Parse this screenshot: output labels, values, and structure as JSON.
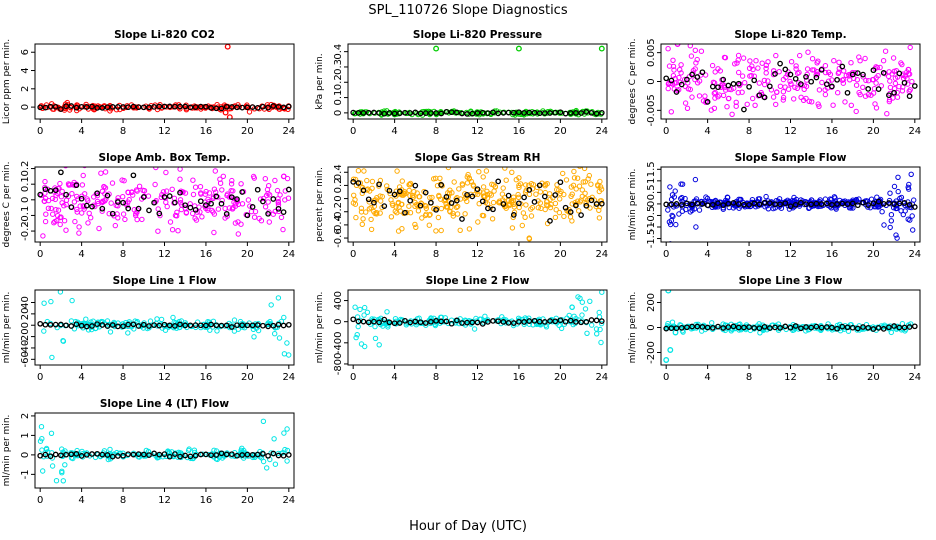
{
  "figure": {
    "title": "SPL_110726  Slope Diagnostics",
    "xlabel": "Hour of Day (UTC)"
  },
  "chart_data": [
    {
      "type": "scatter",
      "title": "Slope Li-820 CO2",
      "ylabel": "Licor ppm per min.",
      "color": "#ff0000",
      "xlim": [
        -0.5,
        24.5
      ],
      "ylim": [
        -1.3,
        6.9
      ],
      "xticks": [
        0,
        4,
        8,
        12,
        16,
        20,
        24
      ],
      "yticks": [
        0,
        2,
        4,
        6
      ],
      "noise": 0.15,
      "occ": 0.45,
      "edge_amp": 0,
      "mean_noise": 0.07,
      "outliers": [
        {
          "x": 18.1,
          "y": 6.6
        },
        {
          "x": 17.9,
          "y": -0.6
        },
        {
          "x": 18.3,
          "y": -1.1
        }
      ]
    },
    {
      "type": "scatter",
      "title": "Slope Li-820 Pressure",
      "ylabel": "kPa per min.",
      "color": "#00cc00",
      "xlim": [
        -0.5,
        24.5
      ],
      "ylim": [
        -0.04,
        0.45
      ],
      "xticks": [
        0,
        4,
        8,
        12,
        16,
        20,
        24
      ],
      "yticks": [
        0.0,
        0.1,
        0.2,
        0.3,
        0.4
      ],
      "noise": 0.007,
      "occ": 0.45,
      "edge_amp": 0,
      "mean_noise": 0.003,
      "outliers": [
        {
          "x": 8.0,
          "y": 0.42
        },
        {
          "x": 16.0,
          "y": 0.42
        },
        {
          "x": 24.0,
          "y": 0.42
        },
        {
          "x": 4.0,
          "y": -0.01
        }
      ]
    },
    {
      "type": "scatter",
      "title": "Slope Li-820 Temp.",
      "ylabel": "degrees C per min.",
      "color": "#ff00ff",
      "xlim": [
        -0.5,
        24.5
      ],
      "ylim": [
        -0.0065,
        0.0065
      ],
      "xticks": [
        0,
        4,
        8,
        12,
        16,
        20,
        24
      ],
      "yticks": [
        -0.005,
        0.0,
        0.005
      ],
      "noise": 0.0026,
      "occ": 0.8,
      "edge_amp": 0,
      "mean_noise": 0.0016,
      "outliers": [
        {
          "x": 1.1,
          "y": 0.0065
        }
      ]
    },
    {
      "type": "scatter",
      "title": "Slope Amb. Box Temp.",
      "ylabel": "degrees C per min.",
      "color": "#ff00ff",
      "xlim": [
        -0.5,
        24.5
      ],
      "ylim": [
        -0.27,
        0.21
      ],
      "xticks": [
        0,
        4,
        8,
        12,
        16,
        20,
        24
      ],
      "yticks": [
        -0.2,
        -0.1,
        0.0,
        0.1,
        0.2
      ],
      "noise": 0.09,
      "occ": 0.8,
      "edge_amp": 0,
      "mean_noise": 0.06,
      "outliers": []
    },
    {
      "type": "scatter",
      "title": "Slope Gas Stream RH",
      "ylabel": "percent per min.",
      "color": "#ffaa00",
      "xlim": [
        -0.5,
        24.5
      ],
      "ylim": [
        -0.66,
        0.48
      ],
      "xticks": [
        0,
        4,
        8,
        12,
        16,
        20,
        24
      ],
      "yticks": [
        -0.6,
        -0.4,
        -0.2,
        0.0,
        0.2,
        0.4
      ],
      "noise": 0.22,
      "occ": 1.0,
      "edge_amp": 0,
      "mean_noise": 0.16,
      "outliers": []
    },
    {
      "type": "scatter",
      "title": "Slope Sample Flow",
      "ylabel": "ml/min per min.",
      "color": "#0000dd",
      "xlim": [
        -0.5,
        24.5
      ],
      "ylim": [
        -1.65,
        1.6
      ],
      "xticks": [
        0,
        4,
        8,
        12,
        16,
        20,
        24
      ],
      "yticks": [
        -1.5,
        -1.0,
        -0.5,
        0.0,
        0.5,
        1.0,
        1.5
      ],
      "noise": 0.13,
      "occ": 1.0,
      "edge_amp": 0.8,
      "mean_noise": 0.05,
      "outliers": []
    },
    {
      "type": "scatter",
      "title": "Slope Line 1 Flow",
      "ylabel": "ml/min per min.",
      "color": "#00e5e5",
      "xlim": [
        -0.5,
        24.5
      ],
      "ylim": [
        -70,
        62
      ],
      "xticks": [
        0,
        4,
        8,
        12,
        16,
        20,
        24
      ],
      "yticks": [
        -60,
        -40,
        -20,
        0,
        20,
        40
      ],
      "noise": 4.5,
      "occ": 0.55,
      "edge_amp": 38,
      "mean_noise": 1.2,
      "outliers": []
    },
    {
      "type": "scatter",
      "title": "Slope Line 2 Flow",
      "ylabel": "ml/min per min.",
      "color": "#00e5e5",
      "xlim": [
        -0.5,
        24.5
      ],
      "ylim": [
        -820,
        600
      ],
      "xticks": [
        0,
        4,
        8,
        12,
        16,
        20,
        24
      ],
      "yticks": [
        -800,
        -400,
        0,
        400
      ],
      "noise": 45,
      "occ": 0.55,
      "edge_amp": 330,
      "mean_noise": 18,
      "outliers": []
    },
    {
      "type": "scatter",
      "title": "Slope Line 3 Flow",
      "ylabel": "ml/min per min.",
      "color": "#00e5e5",
      "xlim": [
        -0.5,
        24.5
      ],
      "ylim": [
        -300,
        300
      ],
      "xticks": [
        0,
        4,
        8,
        12,
        16,
        20,
        24
      ],
      "yticks": [
        -200,
        0,
        200
      ],
      "noise": 15,
      "occ": 0.55,
      "edge_amp": 0,
      "mean_noise": 6,
      "outliers": [
        {
          "x": 0.2,
          "y": 295
        },
        {
          "x": 0.4,
          "y": -180
        },
        {
          "x": 0.0,
          "y": -260
        },
        {
          "x": 0.9,
          "y": -40
        }
      ]
    },
    {
      "type": "scatter",
      "title": "Slope Line 4 (LT) Flow",
      "ylabel": "ml/min per min.",
      "color": "#00e5e5",
      "xlim": [
        -0.5,
        24.5
      ],
      "ylim": [
        -1.7,
        2.15
      ],
      "xticks": [
        0,
        4,
        8,
        12,
        16,
        20,
        24
      ],
      "yticks": [
        -1,
        0,
        1,
        2
      ],
      "noise": 0.12,
      "occ": 0.55,
      "edge_amp": 1.2,
      "mean_noise": 0.04,
      "outliers": []
    }
  ]
}
